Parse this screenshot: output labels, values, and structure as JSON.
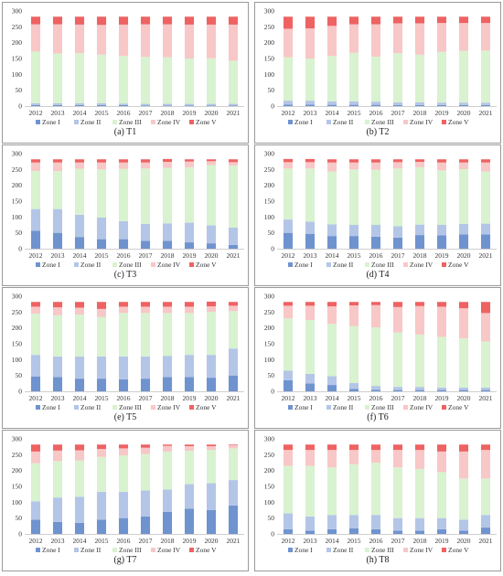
{
  "legend_labels": [
    "Zone I",
    "Zone II",
    "Zone III",
    "Zone IV",
    "Zone V"
  ],
  "colors": [
    "#6f93cf",
    "#b4c6e7",
    "#d9f2d0",
    "#f8c7c7",
    "#ef6262"
  ],
  "chart_data": [
    {
      "type": "bar",
      "stacked": true,
      "caption": "(a) T1",
      "categories": [
        "2012",
        "2013",
        "2014",
        "2015",
        "2016",
        "2017",
        "2018",
        "2019",
        "2020",
        "2021"
      ],
      "ylim": [
        0,
        300
      ],
      "yticks": [
        0,
        50,
        100,
        150,
        200,
        250,
        300
      ],
      "series": [
        {
          "name": "Zone I",
          "values": [
            3,
            3,
            3,
            3,
            3,
            2,
            2,
            2,
            2,
            2
          ]
        },
        {
          "name": "Zone II",
          "values": [
            6,
            6,
            6,
            6,
            5,
            5,
            5,
            5,
            5,
            5
          ]
        },
        {
          "name": "Zone III",
          "values": [
            163,
            157,
            158,
            153,
            150,
            148,
            147,
            143,
            144,
            136
          ]
        },
        {
          "name": "Zone IV",
          "values": [
            86,
            92,
            90,
            94,
            99,
            103,
            104,
            107,
            106,
            114
          ]
        },
        {
          "name": "Zone V",
          "values": [
            24,
            24,
            25,
            26,
            25,
            24,
            24,
            25,
            25,
            25
          ]
        }
      ]
    },
    {
      "type": "bar",
      "stacked": true,
      "caption": "(b) T2",
      "categories": [
        "2012",
        "2013",
        "2014",
        "2015",
        "2016",
        "2017",
        "2018",
        "2019",
        "2020",
        "2021"
      ],
      "ylim": [
        0,
        300
      ],
      "yticks": [
        0,
        50,
        100,
        150,
        200,
        250,
        300
      ],
      "series": [
        {
          "name": "Zone I",
          "values": [
            5,
            5,
            4,
            4,
            4,
            3,
            3,
            3,
            3,
            3
          ]
        },
        {
          "name": "Zone II",
          "values": [
            12,
            12,
            11,
            11,
            10,
            9,
            9,
            8,
            8,
            8
          ]
        },
        {
          "name": "Zone III",
          "values": [
            137,
            133,
            143,
            153,
            142,
            155,
            150,
            160,
            163,
            164
          ]
        },
        {
          "name": "Zone IV",
          "values": [
            90,
            95,
            95,
            90,
            102,
            94,
            99,
            91,
            88,
            87
          ]
        },
        {
          "name": "Zone V",
          "values": [
            38,
            37,
            29,
            24,
            24,
            21,
            21,
            20,
            20,
            20
          ]
        }
      ]
    },
    {
      "type": "bar",
      "stacked": true,
      "caption": "(c) T3",
      "categories": [
        "2012",
        "2013",
        "2014",
        "2015",
        "2016",
        "2017",
        "2018",
        "2019",
        "2020",
        "2021"
      ],
      "ylim": [
        0,
        300
      ],
      "yticks": [
        0,
        50,
        100,
        150,
        200,
        250,
        300
      ],
      "series": [
        {
          "name": "Zone I",
          "values": [
            57,
            50,
            37,
            30,
            30,
            25,
            25,
            20,
            17,
            12
          ]
        },
        {
          "name": "Zone II",
          "values": [
            68,
            75,
            70,
            68,
            57,
            53,
            55,
            62,
            57,
            55
          ]
        },
        {
          "name": "Zone III",
          "values": [
            120,
            120,
            145,
            152,
            165,
            175,
            175,
            175,
            190,
            195
          ]
        },
        {
          "name": "Zone IV",
          "values": [
            27,
            27,
            20,
            22,
            20,
            19,
            19,
            18,
            12,
            11
          ]
        },
        {
          "name": "Zone V",
          "values": [
            10,
            10,
            10,
            10,
            10,
            10,
            9,
            7,
            6,
            9
          ]
        }
      ]
    },
    {
      "type": "bar",
      "stacked": true,
      "caption": "(d) T4",
      "categories": [
        "2012",
        "2013",
        "2014",
        "2015",
        "2016",
        "2017",
        "2018",
        "2019",
        "2020",
        "2021"
      ],
      "ylim": [
        0,
        300
      ],
      "yticks": [
        0,
        50,
        100,
        150,
        200,
        250,
        300
      ],
      "series": [
        {
          "name": "Zone I",
          "values": [
            50,
            47,
            40,
            40,
            38,
            35,
            43,
            42,
            45,
            45
          ]
        },
        {
          "name": "Zone II",
          "values": [
            42,
            38,
            37,
            35,
            37,
            36,
            33,
            33,
            33,
            34
          ]
        },
        {
          "name": "Zone III",
          "values": [
            161,
            168,
            167,
            175,
            174,
            182,
            181,
            172,
            173,
            164
          ]
        },
        {
          "name": "Zone IV",
          "values": [
            20,
            20,
            28,
            22,
            23,
            20,
            17,
            25,
            21,
            29
          ]
        },
        {
          "name": "Zone V",
          "values": [
            10,
            10,
            10,
            10,
            10,
            9,
            8,
            10,
            10,
            10
          ]
        }
      ]
    },
    {
      "type": "bar",
      "stacked": true,
      "caption": "(e) T5",
      "categories": [
        "2012",
        "2013",
        "2014",
        "2015",
        "2016",
        "2017",
        "2018",
        "2019",
        "2020",
        "2021"
      ],
      "ylim": [
        0,
        300
      ],
      "yticks": [
        0,
        50,
        100,
        150,
        200,
        250,
        300
      ],
      "series": [
        {
          "name": "Zone I",
          "values": [
            47,
            45,
            40,
            40,
            38,
            40,
            45,
            45,
            43,
            50
          ]
        },
        {
          "name": "Zone II",
          "values": [
            68,
            65,
            70,
            70,
            72,
            70,
            67,
            70,
            72,
            85
          ]
        },
        {
          "name": "Zone III",
          "values": [
            130,
            130,
            132,
            125,
            137,
            137,
            135,
            132,
            136,
            118
          ]
        },
        {
          "name": "Zone IV",
          "values": [
            22,
            25,
            22,
            25,
            20,
            20,
            20,
            20,
            17,
            17
          ]
        },
        {
          "name": "Zone V",
          "values": [
            15,
            17,
            18,
            22,
            15,
            15,
            15,
            15,
            15,
            12
          ]
        }
      ]
    },
    {
      "type": "bar",
      "stacked": true,
      "caption": "(f) T6",
      "categories": [
        "2012",
        "2013",
        "2014",
        "2015",
        "2016",
        "2017",
        "2018",
        "2019",
        "2020",
        "2021"
      ],
      "ylim": [
        0,
        300
      ],
      "yticks": [
        0,
        50,
        100,
        150,
        200,
        250,
        300
      ],
      "series": [
        {
          "name": "Zone I",
          "values": [
            35,
            25,
            20,
            8,
            5,
            4,
            4,
            4,
            4,
            4
          ]
        },
        {
          "name": "Zone II",
          "values": [
            30,
            30,
            28,
            18,
            12,
            10,
            10,
            8,
            8,
            8
          ]
        },
        {
          "name": "Zone III",
          "values": [
            165,
            170,
            165,
            180,
            185,
            172,
            165,
            160,
            155,
            145
          ]
        },
        {
          "name": "Zone IV",
          "values": [
            40,
            45,
            55,
            65,
            70,
            80,
            90,
            95,
            95,
            90
          ]
        },
        {
          "name": "Zone V",
          "values": [
            12,
            12,
            14,
            11,
            10,
            16,
            13,
            15,
            20,
            35
          ]
        }
      ]
    },
    {
      "type": "bar",
      "stacked": true,
      "caption": "(g) T7",
      "categories": [
        "2012",
        "2013",
        "2014",
        "2015",
        "2016",
        "2017",
        "2018",
        "2019",
        "2020",
        "2021"
      ],
      "ylim": [
        0,
        300
      ],
      "yticks": [
        0,
        50,
        100,
        150,
        200,
        250,
        300
      ],
      "series": [
        {
          "name": "Zone I",
          "values": [
            45,
            38,
            35,
            45,
            50,
            55,
            70,
            80,
            75,
            90
          ]
        },
        {
          "name": "Zone II",
          "values": [
            58,
            77,
            82,
            88,
            83,
            82,
            70,
            77,
            85,
            80
          ]
        },
        {
          "name": "Zone III",
          "values": [
            120,
            115,
            115,
            110,
            115,
            115,
            120,
            105,
            105,
            100
          ]
        },
        {
          "name": "Zone IV",
          "values": [
            37,
            33,
            32,
            25,
            22,
            20,
            18,
            15,
            12,
            10
          ]
        },
        {
          "name": "Zone V",
          "values": [
            22,
            19,
            18,
            14,
            12,
            10,
            4,
            5,
            5,
            2
          ]
        }
      ]
    },
    {
      "type": "bar",
      "stacked": true,
      "caption": "(h) T8",
      "categories": [
        "2012",
        "2013",
        "2014",
        "2015",
        "2016",
        "2017",
        "2018",
        "2019",
        "2020",
        "2021"
      ],
      "ylim": [
        0,
        300
      ],
      "yticks": [
        0,
        50,
        100,
        150,
        200,
        250,
        300
      ],
      "series": [
        {
          "name": "Zone I",
          "values": [
            15,
            10,
            15,
            18,
            15,
            10,
            10,
            15,
            10,
            20
          ]
        },
        {
          "name": "Zone II",
          "values": [
            50,
            45,
            45,
            42,
            45,
            40,
            40,
            35,
            35,
            40
          ]
        },
        {
          "name": "Zone III",
          "values": [
            150,
            160,
            150,
            160,
            165,
            160,
            155,
            145,
            130,
            115
          ]
        },
        {
          "name": "Zone IV",
          "values": [
            50,
            50,
            55,
            45,
            40,
            55,
            60,
            65,
            85,
            90
          ]
        },
        {
          "name": "Zone V",
          "values": [
            17,
            17,
            17,
            17,
            17,
            17,
            17,
            22,
            22,
            17
          ]
        }
      ]
    }
  ]
}
